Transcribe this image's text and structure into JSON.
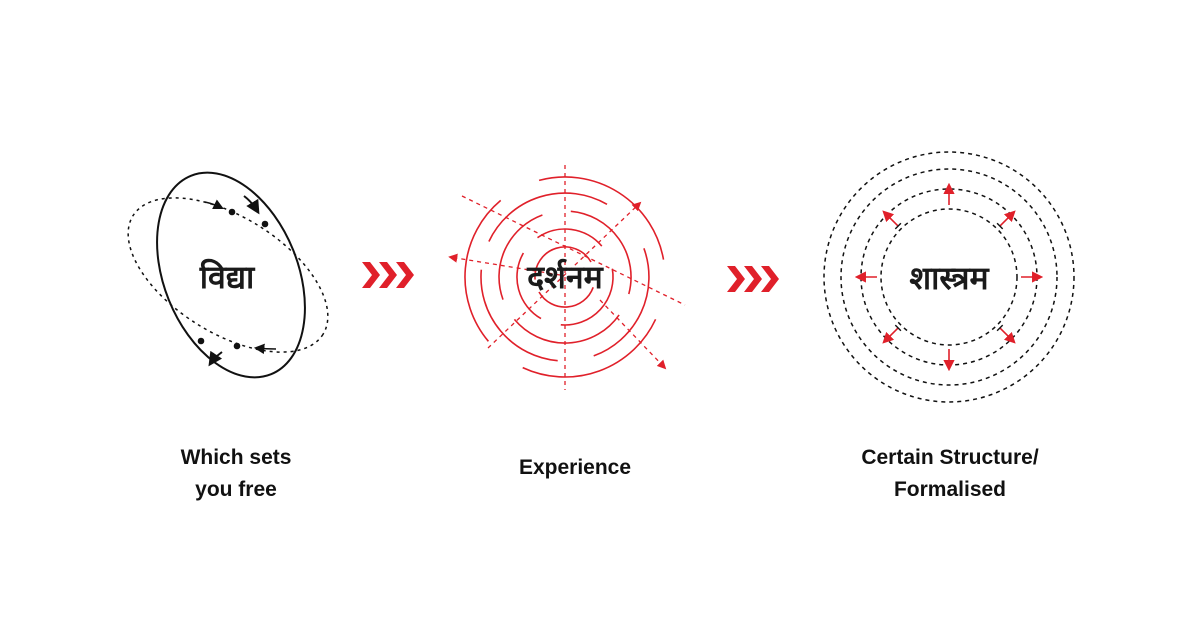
{
  "stages": [
    {
      "word": "विद्या",
      "caption": "Which sets\nyou free"
    },
    {
      "word": "दर्शनम",
      "caption": "Experience"
    },
    {
      "word": "शास्त्रम",
      "caption": "Certain Structure/\nFormalised"
    }
  ],
  "separators": [
    {
      "icon": "triple-chevron-right-icon"
    },
    {
      "icon": "triple-chevron-right-icon"
    }
  ],
  "colors": {
    "accent_red": "#e0202a",
    "stroke_dark": "#111111"
  }
}
